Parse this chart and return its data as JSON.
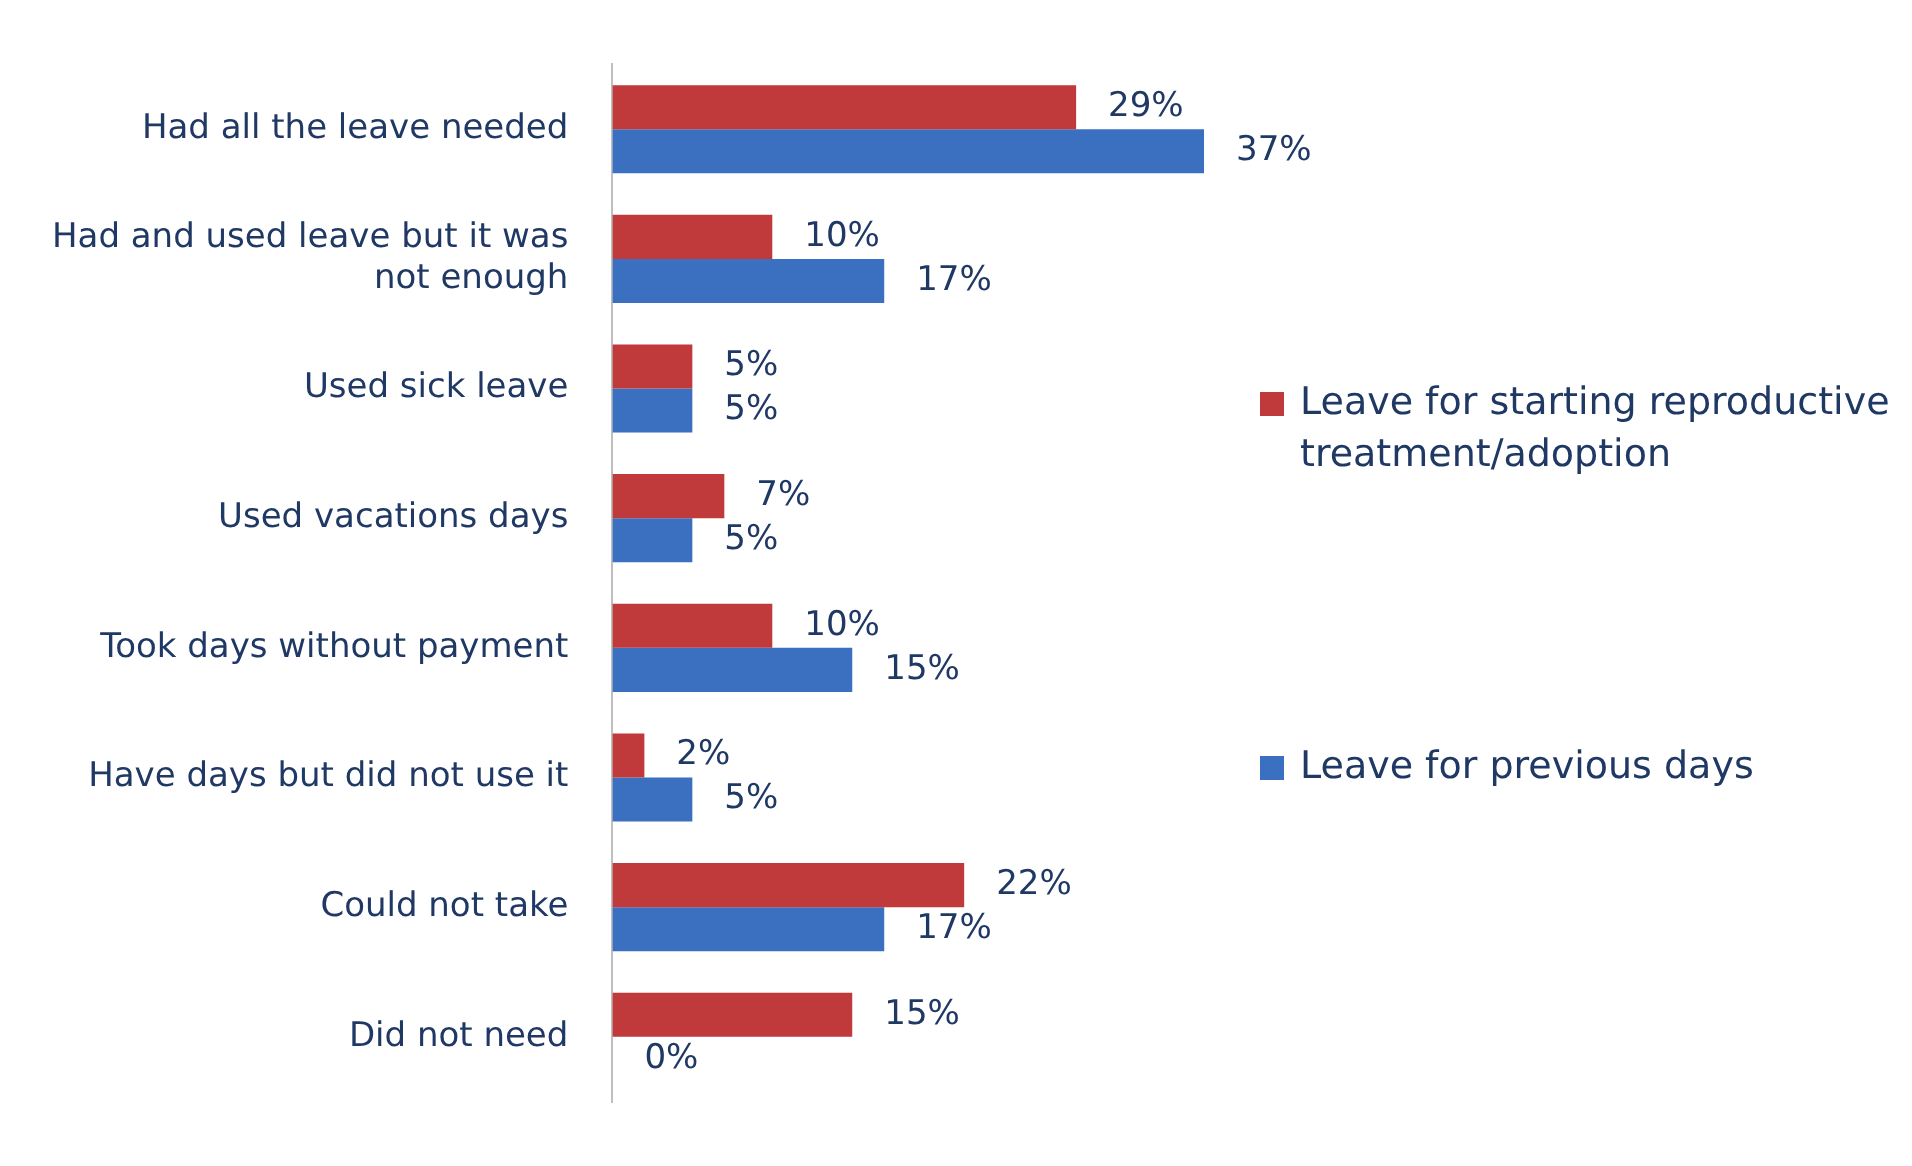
{
  "chart_data": {
    "type": "bar",
    "orientation": "horizontal",
    "legend": "right",
    "categories": [
      "Had all the leave needed",
      "Had and used leave but it was not enough",
      "Used sick leave",
      "Used vacations days",
      "Took days without payment",
      "Have days but did not use it",
      "Could not take",
      "Did not need"
    ],
    "series": [
      {
        "name": "Leave for starting reproductive treatment/adoption",
        "color": "#c0393b",
        "values": [
          29,
          10,
          5,
          7,
          10,
          2,
          22,
          15
        ],
        "value_labels": [
          "29%",
          "10%",
          "5%",
          "7%",
          "10%",
          "2%",
          "22%",
          "15%"
        ]
      },
      {
        "name": "Leave for previous days",
        "color": "#3b70c0",
        "values": [
          37,
          17,
          5,
          5,
          15,
          5,
          17,
          0
        ],
        "value_labels": [
          "37%",
          "17%",
          "5%",
          "5%",
          "15%",
          "5%",
          "17%",
          "0%"
        ]
      }
    ]
  }
}
